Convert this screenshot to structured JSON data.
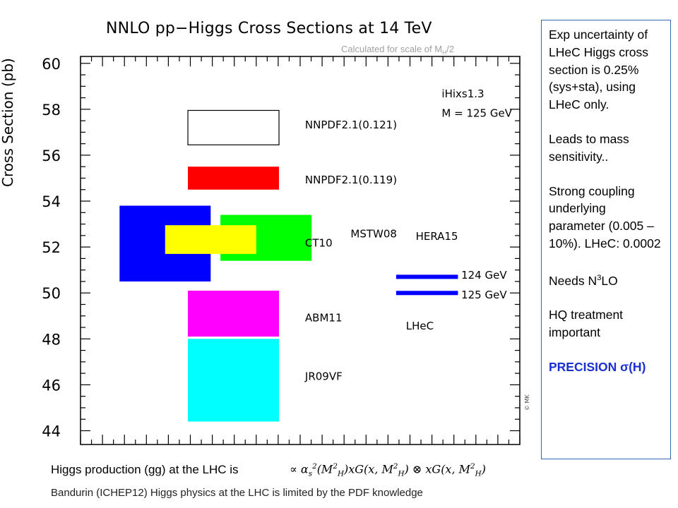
{
  "chart_data": {
    "type": "floating-bar",
    "title": "NNLO pp−Higgs Cross Sections at 14 TeV",
    "subtitle_main": "Calculated for scale of M",
    "subtitle_sub": "H",
    "subtitle_tail": "/2",
    "ylabel": "Cross Section (pb)",
    "ylim": [
      43.4,
      60.3
    ],
    "yticks": [
      44,
      46,
      48,
      50,
      52,
      54,
      56,
      58,
      60
    ],
    "grid": false,
    "annotations": [
      "iHixs1.3",
      "M = 125 GeV"
    ],
    "boxes": [
      {
        "name": "NNPDF2.1(0.121)",
        "x": [
          0.33,
          0.61
        ],
        "y": [
          56.45,
          57.95
        ],
        "color": "#ffffff"
      },
      {
        "name": "NNPDF2.1(0.119)",
        "x": [
          0.33,
          0.61
        ],
        "y": [
          54.5,
          55.5
        ],
        "color": "#ff0000"
      },
      {
        "name": "MSTW08",
        "x": [
          0.43,
          0.71
        ],
        "y": [
          51.4,
          53.4
        ],
        "color": "#00ff00"
      },
      {
        "name": "CT10",
        "x": [
          0.12,
          0.4
        ],
        "y": [
          50.5,
          53.8
        ],
        "color": "#0000ff"
      },
      {
        "name": "HERA15",
        "x": [
          0.26,
          0.54
        ],
        "y": [
          51.7,
          52.95
        ],
        "color": "#ffff00"
      },
      {
        "name": "ABM11",
        "x": [
          0.33,
          0.61
        ],
        "y": [
          48.1,
          50.1
        ],
        "color": "#ff00ff"
      },
      {
        "name": "JR09VF",
        "x": [
          0.33,
          0.61
        ],
        "y": [
          44.4,
          48.0
        ],
        "color": "#00ffff"
      }
    ],
    "labels": [
      {
        "text": "NNPDF2.1(0.121)",
        "x": 0.69,
        "y": 57.35
      },
      {
        "text": "NNPDF2.1(0.119)",
        "x": 0.69,
        "y": 54.95
      },
      {
        "text": "CT10",
        "x": 0.69,
        "y": 52.2
      },
      {
        "text": "MSTW08",
        "x": 0.83,
        "y": 52.6
      },
      {
        "text": "HERA15",
        "x": 1.03,
        "y": 52.5
      },
      {
        "text": "ABM11",
        "x": 0.69,
        "y": 48.95
      },
      {
        "text": "JR09VF",
        "x": 0.69,
        "y": 46.4
      },
      {
        "text": "124 GeV",
        "x": 1.17,
        "y": 50.8
      },
      {
        "text": "125 GeV",
        "x": 1.17,
        "y": 49.95
      },
      {
        "text": "LHeC",
        "x": 1.0,
        "y": 48.6
      }
    ],
    "lhec_lines": [
      {
        "name": "124 GeV",
        "x": [
          0.97,
          1.16
        ],
        "y": 50.7,
        "color": "#0000ff"
      },
      {
        "name": "125 GeV",
        "x": [
          0.97,
          1.16
        ],
        "y": 50.0,
        "color": "#0000ff"
      }
    ],
    "xlim": [
      0,
      1.35
    ]
  },
  "notes": {
    "p1": "Exp uncertainty of LHeC Higgs cross section is 0.25% (sys+sta), using LHeC only.",
    "p2": "Leads to mass sensitivity..",
    "p3": "Strong coupling underlying parameter (0.005 – 10%). LHeC: 0.0002",
    "p4_main": "Needs N",
    "p4_sup": "3",
    "p4_tail": "LO",
    "p5": "HQ treatment important",
    "p6": "PRECISION σ(H)"
  },
  "footer": {
    "line1": "Higgs production (gg)  at the LHC is",
    "formula_prefix": "∝ α",
    "formula_s": "s",
    "formula_2": "2",
    "formula_rest": "(M²",
    "formula_H": "H",
    "formula_tail": ")xG(x, M²_H) ⊗ xG(x, M²_H)",
    "line2": "Bandurin (ICHEP12) Higgs physics at the LHC is limited by the PDF knowledge"
  },
  "credit": "© MK"
}
